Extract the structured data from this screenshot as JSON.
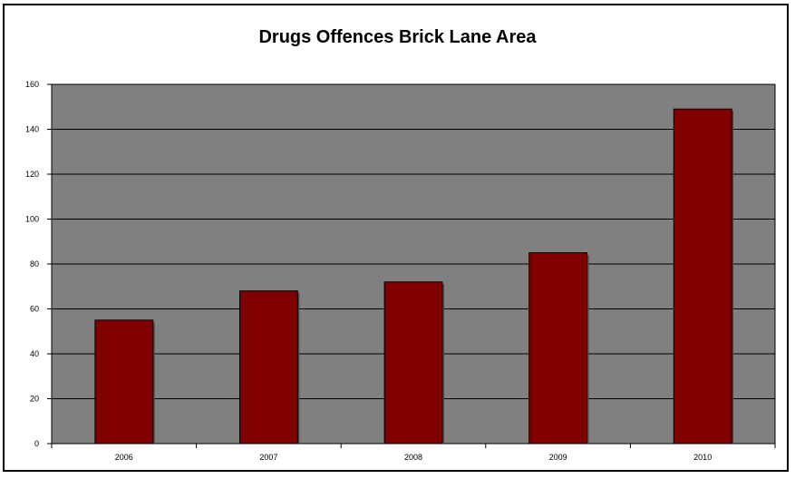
{
  "chart_data": {
    "type": "bar",
    "title": "Drugs Offences Brick Lane Area",
    "xlabel": "",
    "ylabel": "",
    "categories": [
      "2006",
      "2007",
      "2008",
      "2009",
      "2010"
    ],
    "values": [
      55,
      68,
      72,
      85,
      149
    ],
    "ylim": [
      0,
      160
    ],
    "yticks": [
      0,
      20,
      40,
      60,
      80,
      100,
      120,
      140,
      160
    ],
    "grid": true,
    "legend": "none",
    "colors": {
      "bar": "#800000",
      "plot_background": "#808080",
      "gridline": "#000000"
    }
  }
}
